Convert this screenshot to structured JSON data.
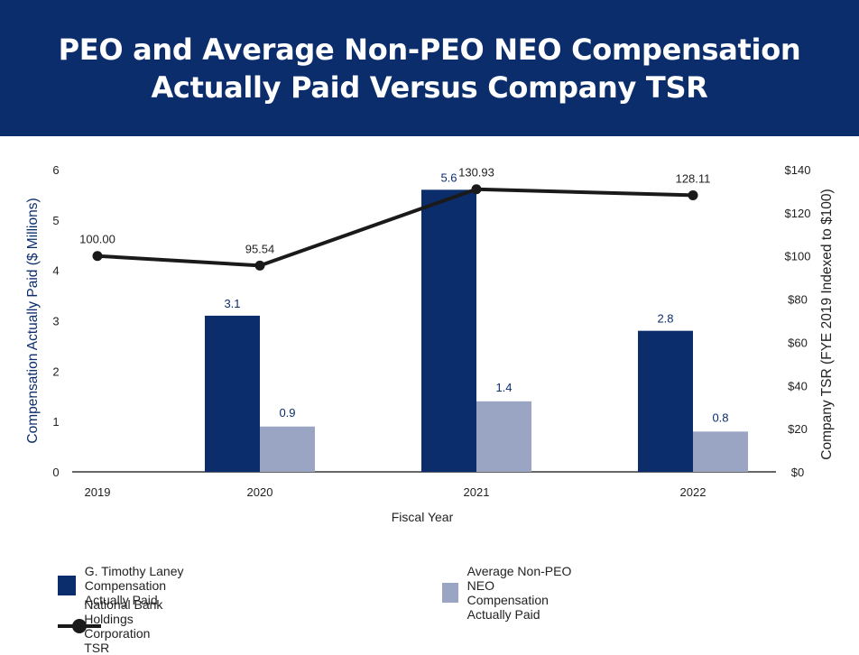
{
  "header": {
    "title_line1": "PEO and Average Non-PEO NEO Compensation",
    "title_line2": "Actually Paid Versus Company TSR"
  },
  "colors": {
    "header_bg": "#0b2d6b",
    "peo_bar": "#0b2d6b",
    "neo_bar": "#9aa5c4",
    "tsr_line": "#1a1a1a",
    "left_axis_text": "#0b2d6b"
  },
  "chart_data": {
    "type": "bar",
    "categories": [
      "2019",
      "2020",
      "2021",
      "2022"
    ],
    "series": [
      {
        "name": "G. Timothy Laney Compensation Actually Paid",
        "axis": "left",
        "values": [
          null,
          3.1,
          5.6,
          2.8
        ],
        "labels": [
          "",
          "3.1",
          "5.6",
          "2.8"
        ]
      },
      {
        "name": "Average Non-PEO NEO Compensation Actually Paid",
        "axis": "left",
        "values": [
          null,
          0.9,
          1.4,
          0.8
        ],
        "labels": [
          "",
          "0.9",
          "1.4",
          "0.8"
        ]
      },
      {
        "name": "National Bank Holdings Corporation TSR",
        "type": "line",
        "axis": "right",
        "values": [
          100.0,
          95.54,
          130.93,
          128.11
        ],
        "labels": [
          "100.00",
          "95.54",
          "130.93",
          "128.11"
        ]
      }
    ],
    "xlabel": "Fiscal Year",
    "ylabel_left": "Compensation Actually Paid ($ Millions)",
    "ylabel_right": "Company TSR (FYE 2019 Indexed to $100)",
    "ylim_left": [
      0,
      6
    ],
    "ylim_right": [
      0,
      140
    ],
    "yticks_left": [
      "0",
      "1",
      "2",
      "3",
      "4",
      "5",
      "6"
    ],
    "yticks_right": [
      "$0",
      "$20",
      "$40",
      "$60",
      "$80",
      "$100",
      "$120",
      "$140"
    ],
    "legend_position": "bottom"
  }
}
